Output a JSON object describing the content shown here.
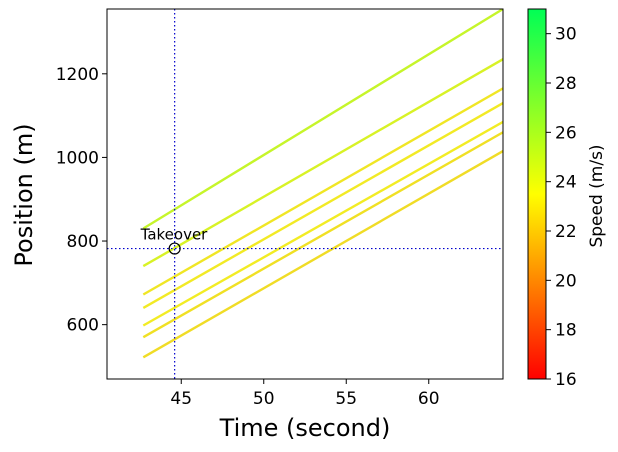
{
  "chart_data": {
    "type": "line",
    "title": "",
    "xlabel": "Time (second)",
    "ylabel": "Position (m)",
    "xlim": [
      40.5,
      64.5
    ],
    "ylim": [
      470,
      1355
    ],
    "xticks": [
      45,
      50,
      55,
      60
    ],
    "yticks": [
      600,
      800,
      1000,
      1200
    ],
    "grid": false,
    "series": [
      {
        "x": [
          42.7,
          64.5
        ],
        "y": [
          830,
          1355
        ],
        "color": "#c6f52a"
      },
      {
        "x": [
          42.7,
          64.5
        ],
        "y": [
          740,
          1235
        ],
        "color": "#d8f226"
      },
      {
        "x": [
          42.7,
          64.5
        ],
        "y": [
          672,
          1165
        ],
        "color": "#f0e625"
      },
      {
        "x": [
          42.7,
          64.5
        ],
        "y": [
          640,
          1130
        ],
        "color": "#f2ea25"
      },
      {
        "x": [
          42.7,
          64.5
        ],
        "y": [
          598,
          1085
        ],
        "color": "#f2ec24"
      },
      {
        "x": [
          42.7,
          64.5
        ],
        "y": [
          570,
          1060
        ],
        "color": "#f0e024"
      },
      {
        "x": [
          42.7,
          64.5
        ],
        "y": [
          522,
          1015
        ],
        "color": "#f0dc26"
      }
    ],
    "reference_lines": {
      "vertical_x": 44.6,
      "horizontal_y": 782,
      "color": "#0000cc"
    },
    "annotation": {
      "text": "Takeover",
      "x": 44.6,
      "y": 782
    },
    "colorbar": {
      "label": "Speed (m/s)",
      "min": 16,
      "max": 31,
      "ticks": [
        16,
        18,
        20,
        22,
        24,
        26,
        28,
        30
      ],
      "colors": [
        "#ff0000",
        "#ffff00",
        "#00ff55"
      ]
    }
  }
}
